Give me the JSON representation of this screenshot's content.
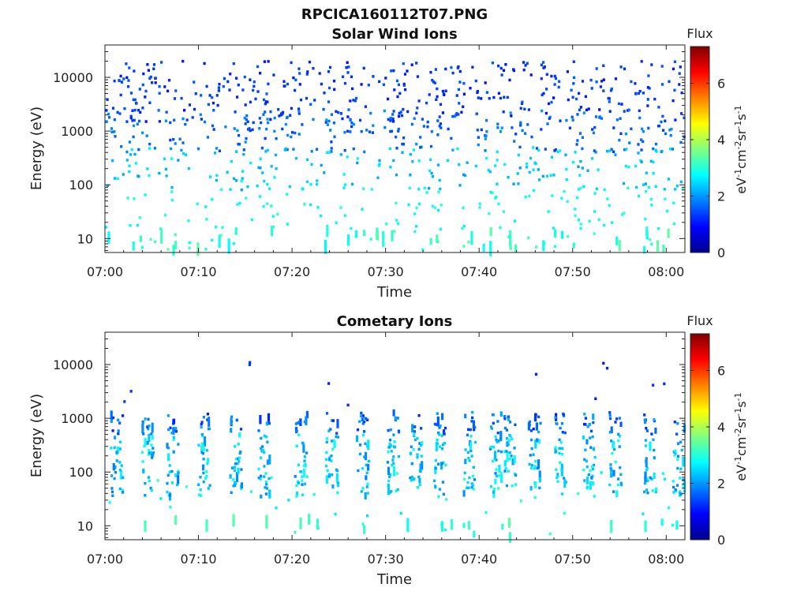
{
  "figure_title": "RPCICA160112T07.PNG",
  "colormap": [
    "#00008f",
    "#0000ff",
    "#0080ff",
    "#00ffff",
    "#80ff80",
    "#ffff00",
    "#ff8000",
    "#ff0000",
    "#800000"
  ],
  "chart_data": [
    {
      "type": "heatmap",
      "title": "Solar Wind Ions",
      "xlabel": "Time",
      "ylabel": "Energy (eV)",
      "x_ticks": [
        "07:00",
        "07:10",
        "07:20",
        "07:30",
        "07:40",
        "07:50",
        "08:00"
      ],
      "xlim_minutes": [
        0,
        62
      ],
      "y_scale": "log",
      "y_ticks": [
        "10",
        "100",
        "1000",
        "10000"
      ],
      "ylim": [
        5.5,
        40000
      ],
      "colorbar": {
        "title": "Flux",
        "label": "eV-1cm-2sr-1s-1",
        "ticks": [
          "0",
          "2",
          "4",
          "6"
        ],
        "range": [
          0,
          7.3
        ]
      },
      "grid": false,
      "seed": 11,
      "clusters": [
        {
          "t0": 0,
          "t1": 62,
          "e0": 1500,
          "e1": 20000,
          "n": 360,
          "v0": 1.0,
          "v1": 1.6
        },
        {
          "t0": 0,
          "t1": 62,
          "e0": 400,
          "e1": 2500,
          "n": 260,
          "v0": 1.3,
          "v1": 2.0
        },
        {
          "t0": 0,
          "t1": 62,
          "e0": 80,
          "e1": 500,
          "n": 190,
          "v0": 2.0,
          "v1": 2.7
        },
        {
          "t0": 0,
          "t1": 62,
          "e0": 15,
          "e1": 90,
          "n": 120,
          "v0": 2.6,
          "v1": 3.1
        },
        {
          "t0": 0,
          "t1": 62,
          "e0": 6,
          "e1": 14,
          "n": 70,
          "v0": 2.7,
          "v1": 3.4
        }
      ]
    },
    {
      "type": "heatmap",
      "title": "Cometary Ions",
      "xlabel": "Time",
      "ylabel": "Energy (eV)",
      "x_ticks": [
        "07:00",
        "07:10",
        "07:20",
        "07:30",
        "07:40",
        "07:50",
        "08:00"
      ],
      "xlim_minutes": [
        0,
        62
      ],
      "y_scale": "log",
      "y_ticks": [
        "10",
        "100",
        "1000",
        "10000"
      ],
      "ylim": [
        5.5,
        40000
      ],
      "colorbar": {
        "title": "Flux",
        "label": "eV-1cm-2sr-1s-1",
        "ticks": [
          "0",
          "2",
          "4",
          "6"
        ],
        "range": [
          0,
          7.3
        ]
      },
      "grid": false,
      "seed": 29,
      "bursts_minutes": [
        0.5,
        3.8,
        6.5,
        9.8,
        13.2,
        16.3,
        20.2,
        23.5,
        26.8,
        30,
        32.5,
        35,
        38.2,
        41,
        42.5,
        45.2,
        48,
        51,
        53.8,
        57.5,
        60.6
      ],
      "sparse": [
        {
          "t0": 0,
          "t1": 62,
          "e0": 1500,
          "e1": 12000,
          "n": 12,
          "v0": 1.0,
          "v1": 1.5
        },
        {
          "t0": 0,
          "t1": 62,
          "e0": 15,
          "e1": 120,
          "n": 40,
          "v0": 2.5,
          "v1": 3.2
        },
        {
          "t0": 0,
          "t1": 62,
          "e0": 6,
          "e1": 14,
          "n": 18,
          "v0": 2.7,
          "v1": 3.2
        }
      ]
    }
  ]
}
